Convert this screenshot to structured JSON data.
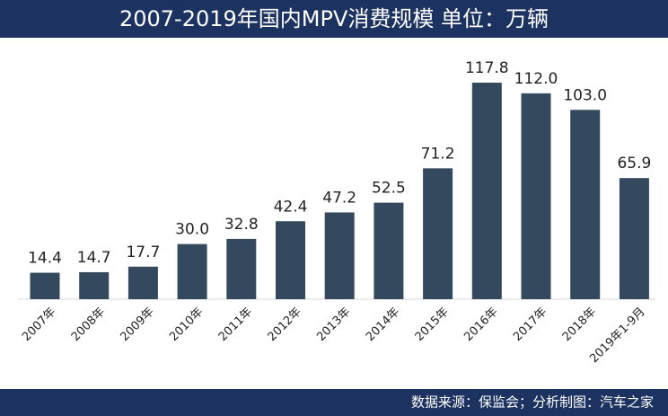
{
  "chart_data": {
    "type": "bar",
    "title": "2007-2019年国内MPV消费规模  单位：万辆",
    "categories": [
      "2007年",
      "2008年",
      "2009年",
      "2010年",
      "2011年",
      "2012年",
      "2013年",
      "2014年",
      "2015年",
      "2016年",
      "2017年",
      "2018年",
      "2019年1-9月"
    ],
    "values": [
      14.4,
      14.7,
      17.7,
      30.0,
      32.8,
      42.4,
      47.2,
      52.5,
      71.2,
      117.8,
      112.0,
      103.0,
      65.9
    ],
    "value_labels": [
      "14.4",
      "14.7",
      "17.7",
      "30.0",
      "32.8",
      "42.4",
      "47.2",
      "52.5",
      "71.2",
      "117.8",
      "112.0",
      "103.0",
      "65.9"
    ],
    "color": "#35495e",
    "source": "数据来源：保监会；分析制图：汽车之家"
  }
}
